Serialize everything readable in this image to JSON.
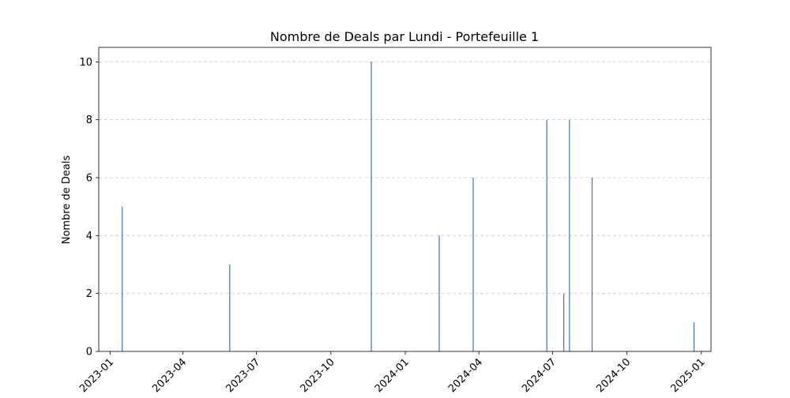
{
  "chart_data": {
    "type": "bar",
    "title": "Nombre de Deals par Lundi - Portefeuille 1",
    "xlabel": "",
    "ylabel": "Nombre de Deals",
    "x_type": "date",
    "xlim": [
      "2022-12-18",
      "2025-01-13"
    ],
    "ylim": [
      0,
      10.5
    ],
    "xticks": [
      "2023-01",
      "2023-04",
      "2023-07",
      "2023-10",
      "2024-01",
      "2024-04",
      "2024-07",
      "2024-10",
      "2025-01"
    ],
    "yticks": [
      0,
      2,
      4,
      6,
      8,
      10
    ],
    "grid": {
      "y": true,
      "x": false,
      "style": "dashed"
    },
    "bar_color": "#4472c4",
    "points": [
      {
        "x": "2023-01-16",
        "y": 5
      },
      {
        "x": "2023-05-29",
        "y": 3
      },
      {
        "x": "2023-11-20",
        "y": 10
      },
      {
        "x": "2024-02-12",
        "y": 4
      },
      {
        "x": "2024-03-25",
        "y": 6
      },
      {
        "x": "2024-06-24",
        "y": 8
      },
      {
        "x": "2024-07-15",
        "y": 2
      },
      {
        "x": "2024-07-22",
        "y": 8
      },
      {
        "x": "2024-08-19",
        "y": 6
      },
      {
        "x": "2024-12-23",
        "y": 1
      }
    ]
  }
}
